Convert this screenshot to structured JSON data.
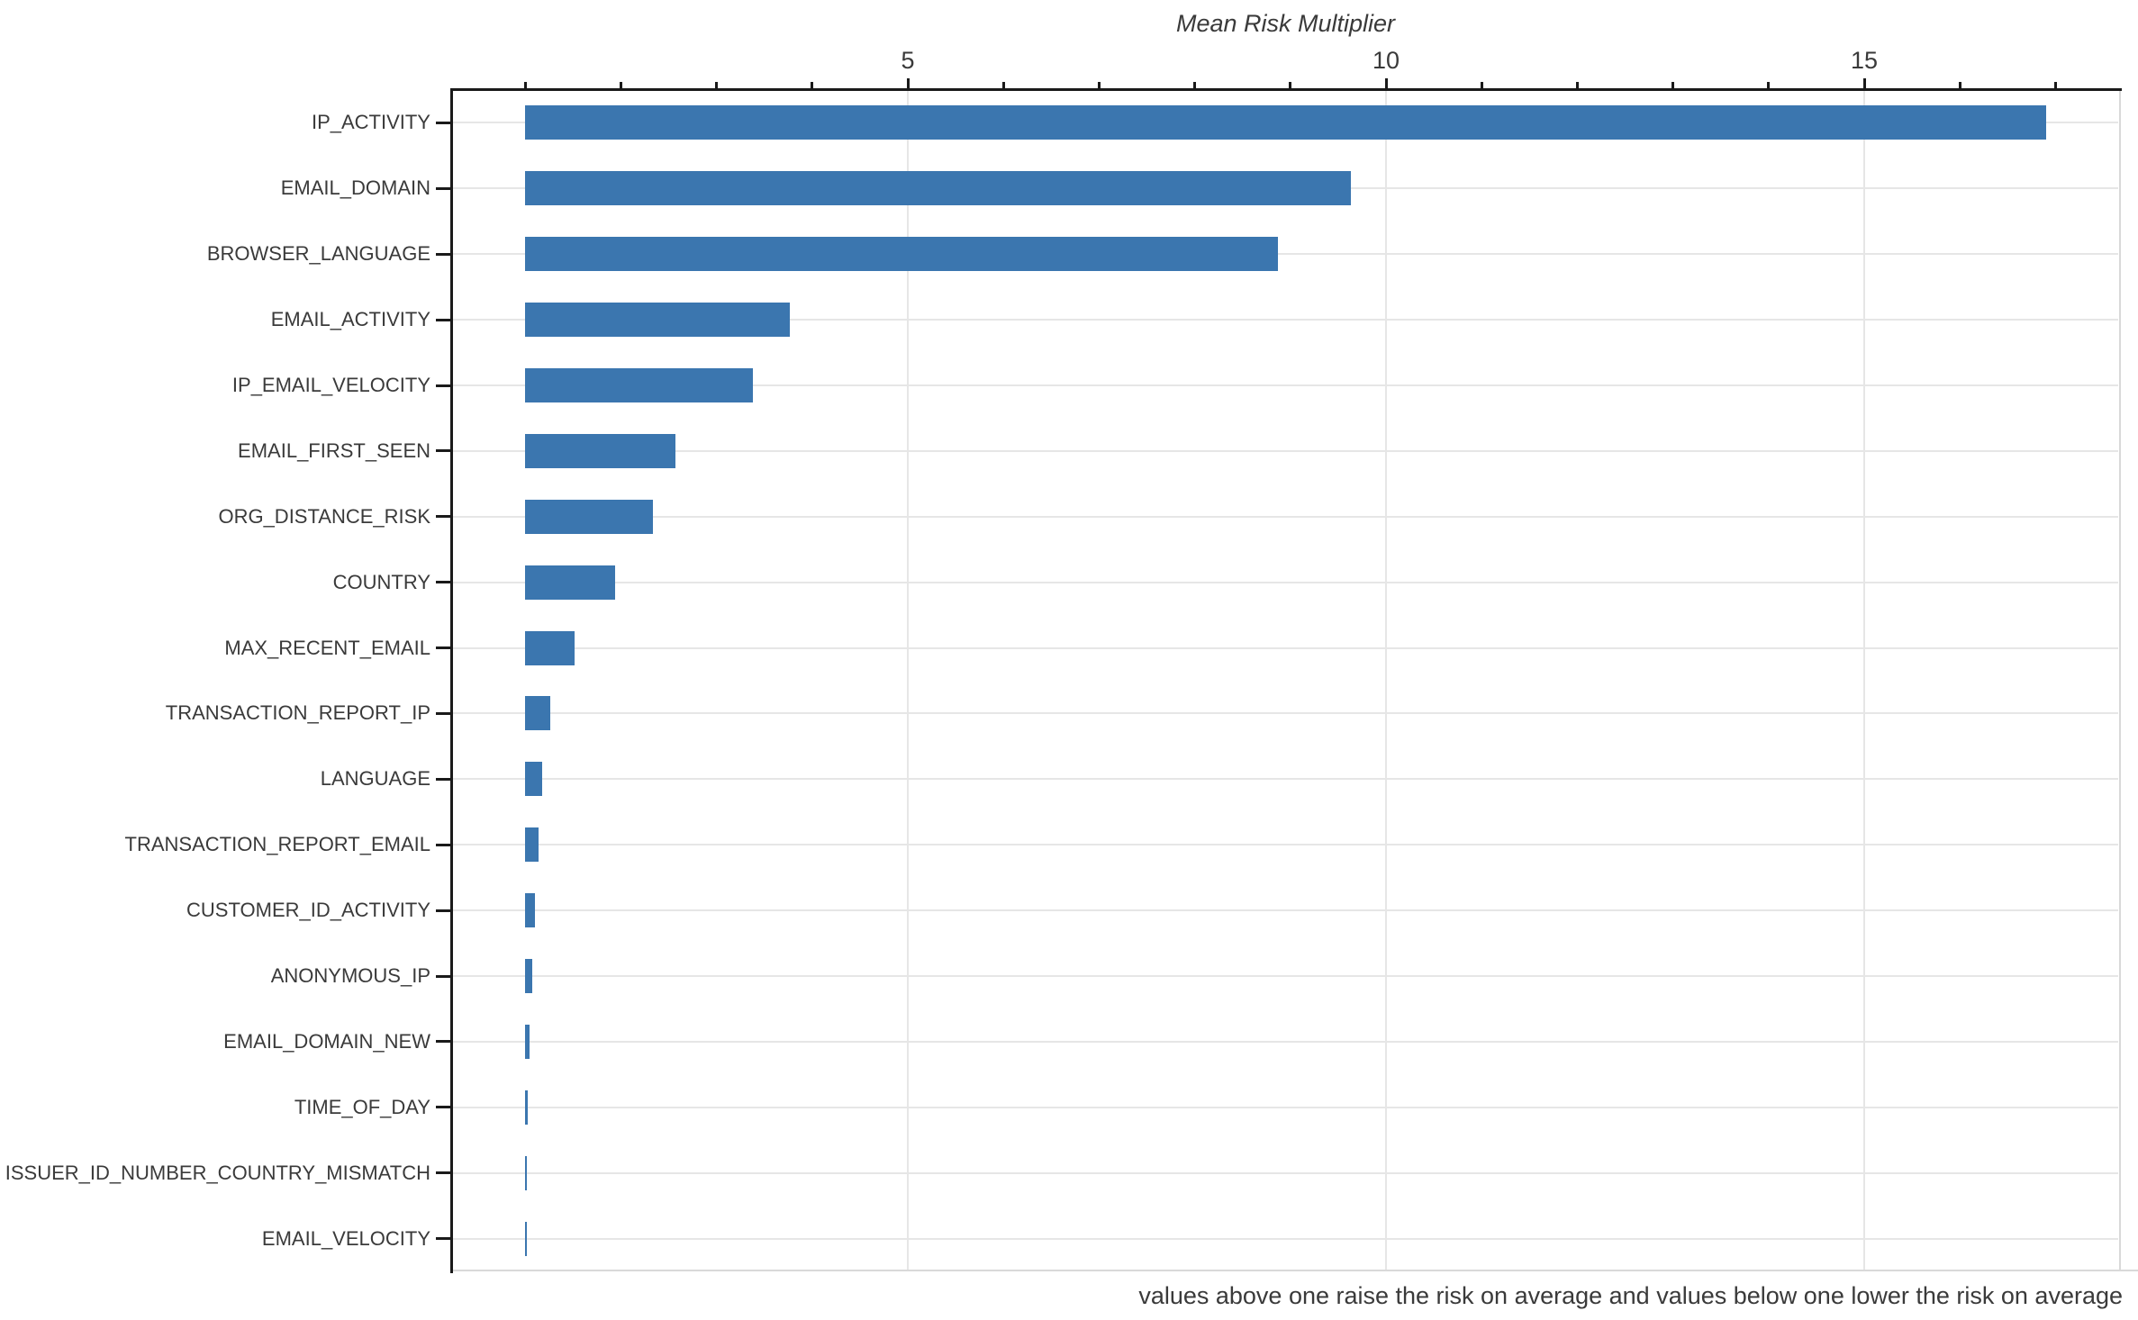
{
  "chart_data": {
    "type": "bar",
    "orientation": "horizontal",
    "title": "Mean Risk Multiplier",
    "note": "values above one raise the risk on average and values below one lower the risk on average",
    "categories": [
      "IP_ACTIVITY",
      "EMAIL_DOMAIN",
      "BROWSER_LANGUAGE",
      "EMAIL_ACTIVITY",
      "IP_EMAIL_VELOCITY",
      "EMAIL_FIRST_SEEN",
      "ORG_DISTANCE_RISK",
      "COUNTRY",
      "MAX_RECENT_EMAIL",
      "TRANSACTION_REPORT_IP",
      "LANGUAGE",
      "TRANSACTION_REPORT_EMAIL",
      "CUSTOMER_ID_ACTIVITY",
      "ANONYMOUS_IP",
      "EMAIL_DOMAIN_NEW",
      "TIME_OF_DAY",
      "ISSUER_ID_NUMBER_COUNTRY_MISMATCH",
      "EMAIL_VELOCITY"
    ],
    "values": [
      16.9,
      9.63,
      8.87,
      3.77,
      3.38,
      2.57,
      2.34,
      1.94,
      1.52,
      1.26,
      1.18,
      1.14,
      1.1,
      1.07,
      1.05,
      1.03,
      1.02,
      1.015
    ],
    "bar_baseline": 1,
    "xlabel": "",
    "ylabel": "",
    "xlim": [
      0.25,
      17.7
    ],
    "x_major_ticks": [
      5,
      10,
      15
    ],
    "x_minor_ticks": [
      1,
      2,
      3,
      4,
      6,
      7,
      8,
      9,
      11,
      12,
      13,
      14,
      16,
      17
    ],
    "grid": {
      "vertical_at_major_ticks": true,
      "horizontal_at_categories": true
    },
    "legend": "none",
    "colors": {
      "bar": "#3b76af",
      "grid": "#e6e6e6",
      "axis": "#1a1a1a",
      "light_spine": "#d9d9d9",
      "text": "#3a3a3a"
    }
  }
}
